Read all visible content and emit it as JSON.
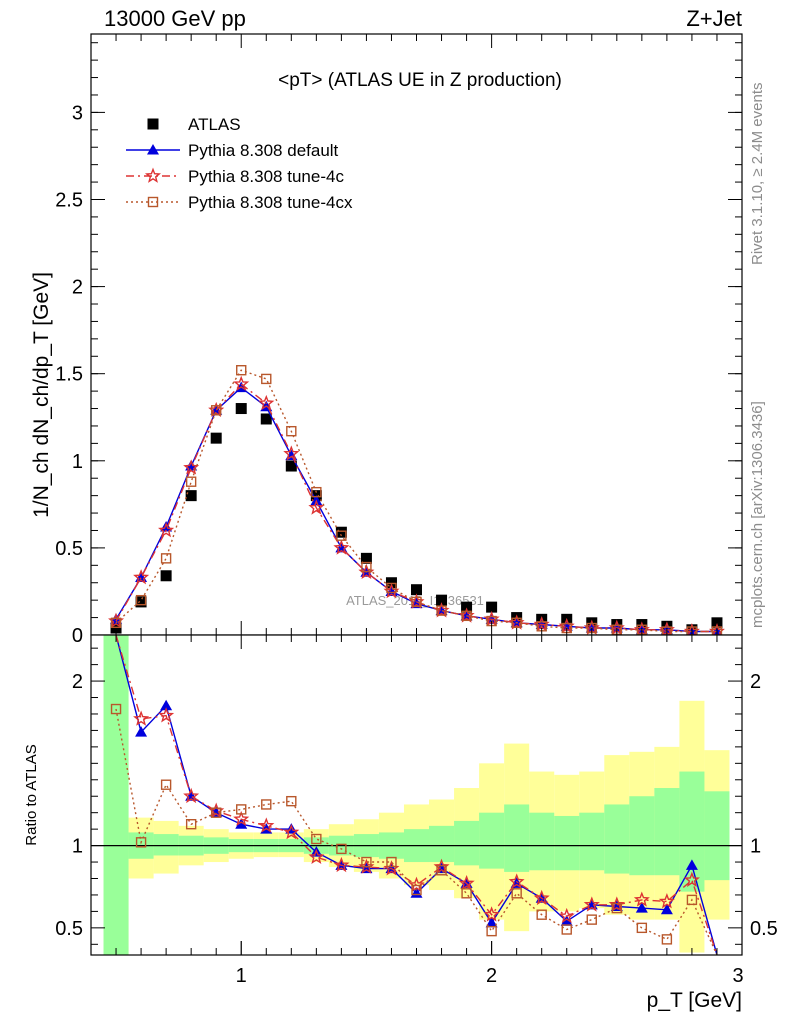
{
  "header": {
    "left": "13000 GeV pp",
    "right": "Z+Jet"
  },
  "side": {
    "rivet": "Rivet 3.1.10, ≥ 2.4M events",
    "mcplots": "mcplots.cern.ch [arXiv:1306.3436]"
  },
  "watermark": "ATLAS_2019_I1736531",
  "chart_data": [
    {
      "type": "scatter",
      "title": "<pT> (ATLAS UE in Z production)",
      "ylabel": "1/N_ch dN_ch/dp_T [GeV]",
      "xlim": [
        0.4,
        3.0
      ],
      "ylim": [
        0,
        3.45
      ],
      "yticks": [
        0,
        0.5,
        1,
        1.5,
        2,
        2.5,
        3
      ],
      "yticklabels": [
        "0",
        "0.5",
        "1",
        "1.5",
        "2",
        "2.5",
        "3"
      ],
      "x": [
        0.5,
        0.6,
        0.7,
        0.8,
        0.9,
        1.0,
        1.1,
        1.2,
        1.3,
        1.4,
        1.5,
        1.6,
        1.7,
        1.8,
        1.9,
        2.0,
        2.1,
        2.2,
        2.3,
        2.4,
        2.5,
        2.6,
        2.7,
        2.8,
        2.9
      ],
      "legend_position": "top-left",
      "series": [
        {
          "name": "ATLAS",
          "color": "#000000",
          "marker": "square-filled",
          "values": [
            0.04,
            0.19,
            0.34,
            0.8,
            1.13,
            1.3,
            1.24,
            0.97,
            0.8,
            0.59,
            0.44,
            0.3,
            0.26,
            0.2,
            0.16,
            0.16,
            0.1,
            0.09,
            0.09,
            0.07,
            0.06,
            0.06,
            0.05,
            0.03,
            0.07
          ]
        },
        {
          "name": "Pythia 8.308 default",
          "color": "#0000dd",
          "marker": "triangle-filled",
          "line": "solid",
          "values": [
            0.09,
            0.33,
            0.62,
            0.97,
            1.29,
            1.42,
            1.31,
            1.03,
            0.77,
            0.5,
            0.36,
            0.25,
            0.18,
            0.14,
            0.11,
            0.09,
            0.07,
            0.06,
            0.05,
            0.04,
            0.04,
            0.03,
            0.03,
            0.02,
            0.02
          ]
        },
        {
          "name": "Pythia 8.308 tune-4c",
          "color": "#dd3333",
          "marker": "star-open",
          "line": "dashdot",
          "values": [
            0.08,
            0.33,
            0.6,
            0.96,
            1.29,
            1.44,
            1.33,
            1.04,
            0.73,
            0.5,
            0.36,
            0.25,
            0.19,
            0.14,
            0.11,
            0.09,
            0.07,
            0.06,
            0.05,
            0.04,
            0.04,
            0.03,
            0.03,
            0.02,
            0.02
          ]
        },
        {
          "name": "Pythia 8.308 tune-4cx",
          "color": "#b8572b",
          "marker": "square-open",
          "line": "dotted",
          "values": [
            0.07,
            0.2,
            0.44,
            0.88,
            1.29,
            1.52,
            1.47,
            1.17,
            0.82,
            0.57,
            0.39,
            0.27,
            0.19,
            0.14,
            0.11,
            0.08,
            0.07,
            0.05,
            0.04,
            0.04,
            0.03,
            0.03,
            0.02,
            0.02,
            0.02
          ]
        }
      ]
    },
    {
      "type": "line",
      "ylabel": "Ratio to ATLAS",
      "xlabel": "p_T [GeV]",
      "xlim": [
        0.4,
        3.0
      ],
      "ylim": [
        0.335,
        2.28
      ],
      "xticks": [
        1,
        2,
        3
      ],
      "xticklabels": [
        "1",
        "2",
        "3"
      ],
      "yticks": [
        0.5,
        1,
        2
      ],
      "yticklabels": [
        "0.5",
        "1",
        "2"
      ],
      "x": [
        0.5,
        0.6,
        0.7,
        0.8,
        0.9,
        1.0,
        1.1,
        1.2,
        1.3,
        1.4,
        1.5,
        1.6,
        1.7,
        1.8,
        1.9,
        2.0,
        2.1,
        2.2,
        2.3,
        2.4,
        2.5,
        2.6,
        2.7,
        2.8,
        2.9
      ],
      "band_stat": {
        "color": "#99ff99",
        "lower": [
          0.2,
          0.92,
          0.94,
          0.94,
          0.95,
          0.96,
          0.96,
          0.96,
          0.95,
          0.94,
          0.93,
          0.92,
          0.9,
          0.9,
          0.88,
          0.86,
          0.84,
          0.85,
          0.85,
          0.85,
          0.83,
          0.82,
          0.82,
          0.72,
          0.79
        ],
        "upper": [
          2.5,
          1.08,
          1.07,
          1.06,
          1.05,
          1.04,
          1.04,
          1.04,
          1.05,
          1.06,
          1.07,
          1.08,
          1.1,
          1.12,
          1.15,
          1.2,
          1.25,
          1.2,
          1.18,
          1.2,
          1.25,
          1.3,
          1.35,
          1.45,
          1.33
        ]
      },
      "band_total": {
        "color": "#ffff99",
        "lower": [
          0.2,
          0.8,
          0.83,
          0.88,
          0.9,
          0.92,
          0.93,
          0.93,
          0.9,
          0.87,
          0.84,
          0.8,
          0.76,
          0.73,
          0.68,
          0.55,
          0.48,
          0.6,
          0.6,
          0.62,
          0.58,
          0.55,
          0.55,
          0.35,
          0.55
        ],
        "upper": [
          2.5,
          1.17,
          1.15,
          1.12,
          1.1,
          1.08,
          1.08,
          1.08,
          1.1,
          1.13,
          1.16,
          1.2,
          1.25,
          1.28,
          1.35,
          1.5,
          1.62,
          1.45,
          1.43,
          1.45,
          1.55,
          1.57,
          1.6,
          1.88,
          1.58
        ]
      },
      "series": [
        {
          "name": "Pythia 8.308 default",
          "color": "#0000dd",
          "marker": "triangle-filled",
          "line": "solid",
          "values": [
            2.5,
            1.69,
            1.85,
            1.3,
            1.2,
            1.13,
            1.1,
            1.1,
            0.96,
            0.88,
            0.86,
            0.86,
            0.71,
            0.86,
            0.77,
            0.53,
            0.77,
            0.68,
            0.54,
            0.64,
            0.63,
            0.62,
            0.61,
            0.88,
            0.2
          ]
        },
        {
          "name": "Pythia 8.308 tune-4c",
          "color": "#dd3333",
          "marker": "star-open",
          "line": "dashdot",
          "values": [
            2.5,
            1.77,
            1.79,
            1.3,
            1.21,
            1.16,
            1.12,
            1.08,
            0.93,
            0.88,
            0.87,
            0.86,
            0.76,
            0.87,
            0.77,
            0.58,
            0.78,
            0.68,
            0.57,
            0.64,
            0.64,
            0.67,
            0.66,
            0.79,
            0.2
          ]
        },
        {
          "name": "Pythia 8.308 tune-4cx",
          "color": "#b8572b",
          "marker": "square-open",
          "line": "dotted",
          "values": [
            1.83,
            1.02,
            1.37,
            1.13,
            1.2,
            1.22,
            1.25,
            1.27,
            1.04,
            0.98,
            0.9,
            0.9,
            0.73,
            0.85,
            0.71,
            0.48,
            0.71,
            0.58,
            0.49,
            0.55,
            0.62,
            0.5,
            0.43,
            0.67,
            0.2
          ]
        }
      ]
    }
  ]
}
